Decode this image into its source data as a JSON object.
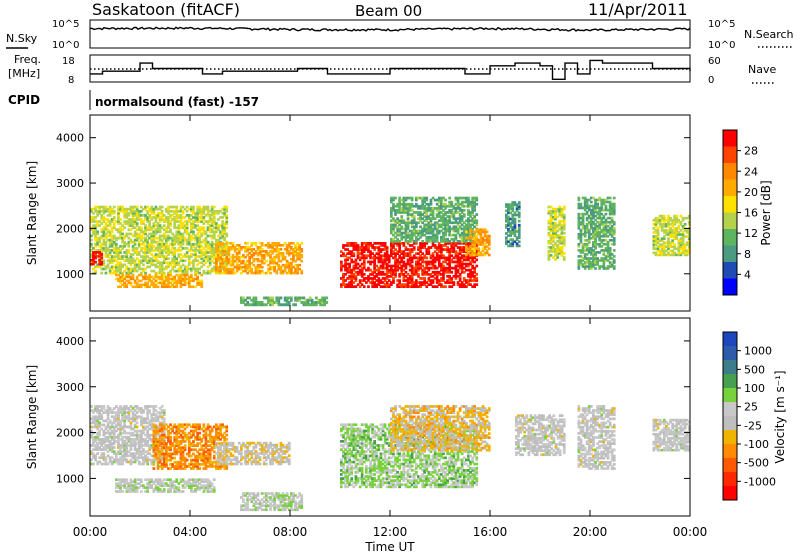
{
  "header": {
    "site": "Saskatoon (fitACF)",
    "beam": "Beam 00",
    "date": "11/Apr/2011"
  },
  "noise_panel": {
    "left_label": "N.Sky",
    "left_ticks": [
      "10^5",
      "10^0"
    ],
    "right_ticks": [
      "10^5",
      "10^0"
    ],
    "right_label": "N.Search"
  },
  "freq_panel": {
    "label_line1": "Freq.",
    "label_line2": "[MHz]",
    "left_ticks": [
      "18",
      "8"
    ],
    "right_ticks": [
      "60",
      "0"
    ],
    "right_label": "Nave"
  },
  "cpid": {
    "label": "CPID",
    "text": "normalsound (fast) -157"
  },
  "time_axis": {
    "ticks": [
      "00:00",
      "04:00",
      "08:00",
      "12:00",
      "16:00",
      "20:00",
      "00:00"
    ],
    "label": "Time UT"
  },
  "power_colorbar": {
    "ticks": [
      "28",
      "24",
      "20",
      "16",
      "12",
      "8",
      "4"
    ],
    "label": "Power [dB]",
    "colors": [
      "#ff0000",
      "#ff4400",
      "#ff8800",
      "#ffaa00",
      "#ffe100",
      "#b4d24b",
      "#5fb45f",
      "#4b9b82",
      "#1e4bb4",
      "#0000ff"
    ]
  },
  "velocity_colorbar": {
    "ticks": [
      "1000",
      "500",
      "100",
      "25",
      "-25",
      "-100",
      "-500",
      "-1000"
    ],
    "label": "Velocity [m s⁻¹]",
    "colors": [
      "#1e46be",
      "#2d5aaa",
      "#3c7d8c",
      "#46a050",
      "#78d23c",
      "#c8c8c8",
      "#bebebe",
      "#f0b400",
      "#ff8c00",
      "#ff5a00",
      "#ff2800",
      "#ff0000"
    ]
  },
  "chart_data": [
    {
      "type": "line",
      "title": "Saskatoon (fitACF)",
      "panel": "noise",
      "yscale": "log",
      "ylim": [
        1,
        100000
      ],
      "x": [
        "00:00",
        "04:00",
        "08:00",
        "12:00",
        "16:00",
        "20:00",
        "00:00"
      ],
      "series": [
        {
          "name": "N.Sky",
          "values": [
            3000,
            3500,
            2000,
            1800,
            3000,
            1500,
            2500
          ]
        },
        {
          "name": "N.Search",
          "values": [
            2000,
            2500,
            1500,
            1500,
            2000,
            1200,
            2000
          ]
        }
      ]
    },
    {
      "type": "line",
      "panel": "frequency",
      "ylim": [
        8,
        18
      ],
      "x_hours": [
        0,
        0.5,
        1.0,
        2.0,
        2.5,
        4.5,
        5.3,
        8.3,
        9.5,
        12.0,
        15.0,
        16.0,
        17.0,
        18.0,
        18.5,
        19.0,
        19.5,
        20.0,
        20.5,
        22.5,
        24.0
      ],
      "series": [
        {
          "name": "Freq. [MHz]",
          "values": [
            11,
            12,
            12,
            15,
            13,
            11,
            12,
            13,
            11,
            13,
            11,
            14,
            15,
            14,
            9,
            15,
            11,
            16,
            15,
            13,
            12
          ]
        }
      ]
    },
    {
      "type": "heatmap",
      "panel": "power",
      "xlabel": "Time UT",
      "ylabel": "Slant Range [km]",
      "xlim": [
        0,
        24
      ],
      "ylim": [
        180,
        4500
      ],
      "yticks": [
        1000,
        2000,
        3000,
        4000
      ],
      "colorbar_label": "Power [dB]",
      "colorbar_range": [
        0,
        30
      ],
      "blobs": [
        {
          "t0": 0.0,
          "t1": 5.5,
          "r0": 1000,
          "r1": 2500,
          "value": 14
        },
        {
          "t0": 0.0,
          "t1": 0.5,
          "r0": 1200,
          "r1": 1500,
          "value": 28
        },
        {
          "t0": 1.0,
          "t1": 4.5,
          "r0": 700,
          "r1": 1000,
          "value": 20
        },
        {
          "t0": 5.0,
          "t1": 8.5,
          "r0": 1000,
          "r1": 1700,
          "value": 20
        },
        {
          "t0": 6.0,
          "t1": 9.5,
          "r0": 300,
          "r1": 500,
          "value": 10
        },
        {
          "t0": 10.0,
          "t1": 15.5,
          "r0": 700,
          "r1": 1700,
          "value": 28
        },
        {
          "t0": 12.0,
          "t1": 15.5,
          "r0": 1700,
          "r1": 2700,
          "value": 10
        },
        {
          "t0": 15.0,
          "t1": 16.0,
          "r0": 1400,
          "r1": 2000,
          "value": 20
        },
        {
          "t0": 16.6,
          "t1": 17.2,
          "r0": 1600,
          "r1": 2600,
          "value": 8
        },
        {
          "t0": 18.3,
          "t1": 19.0,
          "r0": 1300,
          "r1": 2500,
          "value": 14
        },
        {
          "t0": 19.5,
          "t1": 21.0,
          "r0": 1100,
          "r1": 2700,
          "value": 10
        },
        {
          "t0": 22.5,
          "t1": 24.0,
          "r0": 1400,
          "r1": 2300,
          "value": 14
        }
      ]
    },
    {
      "type": "heatmap",
      "panel": "velocity",
      "xlabel": "Time UT",
      "ylabel": "Slant Range [km]",
      "xlim": [
        0,
        24
      ],
      "ylim": [
        180,
        4500
      ],
      "yticks": [
        1000,
        2000,
        3000,
        4000
      ],
      "colorbar_label": "Velocity [m s⁻¹]",
      "colorbar_range": [
        -1000,
        1000
      ],
      "blobs": [
        {
          "t0": 0.0,
          "t1": 3.0,
          "r0": 1300,
          "r1": 2600,
          "value": 0
        },
        {
          "t0": 2.5,
          "t1": 5.5,
          "r0": 1200,
          "r1": 2200,
          "value": -400
        },
        {
          "t0": 1.0,
          "t1": 5.0,
          "r0": 700,
          "r1": 1000,
          "value": 80
        },
        {
          "t0": 5.0,
          "t1": 8.0,
          "r0": 1300,
          "r1": 1800,
          "value": -100
        },
        {
          "t0": 6.0,
          "t1": 8.5,
          "r0": 300,
          "r1": 700,
          "value": 80
        },
        {
          "t0": 10.0,
          "t1": 15.5,
          "r0": 800,
          "r1": 2200,
          "value": 200
        },
        {
          "t0": 12.0,
          "t1": 16.0,
          "r0": 1600,
          "r1": 2600,
          "value": -200
        },
        {
          "t0": 17.0,
          "t1": 19.0,
          "r0": 1500,
          "r1": 2400,
          "value": 0
        },
        {
          "t0": 19.5,
          "t1": 21.0,
          "r0": 1200,
          "r1": 2600,
          "value": 0
        },
        {
          "t0": 22.5,
          "t1": 24.0,
          "r0": 1600,
          "r1": 2300,
          "value": 0
        }
      ]
    }
  ]
}
